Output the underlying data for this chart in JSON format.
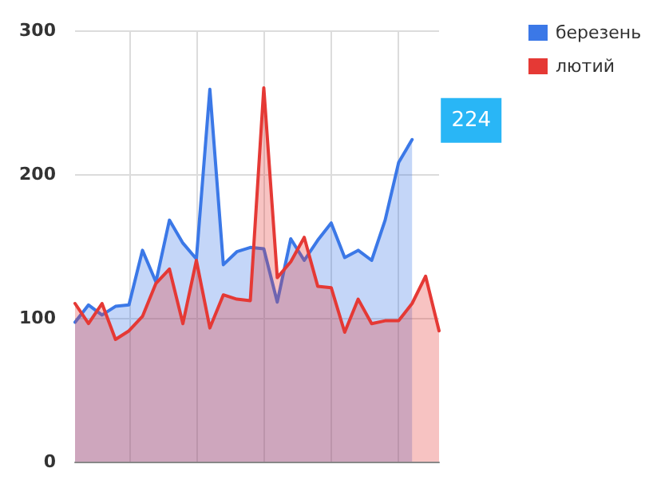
{
  "chart_data": {
    "type": "area",
    "categories": [
      null,
      null,
      null,
      null,
      null,
      null,
      null,
      null,
      null,
      null,
      null,
      null,
      null,
      null,
      null,
      null,
      null,
      null,
      null,
      null,
      null,
      null,
      null,
      null,
      null,
      null,
      null,
      null
    ],
    "series": [
      {
        "name": "березень",
        "color": "#3b78e7",
        "values": [
          97,
          109,
          102,
          108,
          109,
          147,
          125,
          168,
          152,
          141,
          259,
          137,
          146,
          149,
          148,
          111,
          155,
          140,
          154,
          166,
          142,
          147,
          140,
          168,
          208,
          224,
          null,
          null
        ]
      },
      {
        "name": "лютий",
        "color": "#e53935",
        "values": [
          110,
          96,
          110,
          85,
          91,
          101,
          124,
          134,
          96,
          140,
          93,
          116,
          113,
          112,
          260,
          128,
          139,
          156,
          122,
          121,
          90,
          113,
          96,
          98,
          98,
          110,
          129,
          91
        ]
      }
    ],
    "ylim": [
      0,
      300
    ],
    "yticks": [
      0,
      100,
      200,
      300
    ],
    "tick_labels": "y",
    "grid": true,
    "legend": "top right",
    "annotations": [
      "224"
    ]
  }
}
